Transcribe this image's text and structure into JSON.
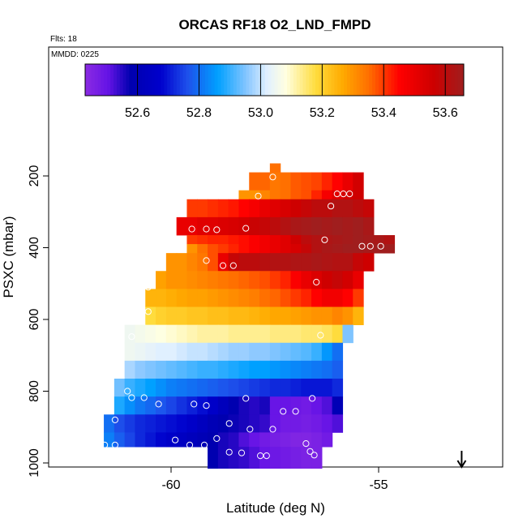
{
  "chart_data": {
    "type": "heatmap",
    "title": "ORCAS RF18 O2_LND_FMPD",
    "flights_label": "Flts: 18",
    "date_label": "MMDD: 0225",
    "xlabel": "Latitude (deg N)",
    "ylabel": "PSXC (mbar)",
    "xlim": [
      -63,
      -52
    ],
    "ylim": [
      1010,
      90
    ],
    "x_ticks": [
      -60,
      -55
    ],
    "x_tick_labels": [
      "-60",
      "-55"
    ],
    "y_ticks": [
      200,
      400,
      600,
      800,
      1000
    ],
    "y_tick_labels": [
      "200",
      "400",
      "600",
      "800",
      "1000"
    ],
    "colorbar": {
      "min": 52.43,
      "max": 53.66,
      "ticks": [
        52.6,
        52.8,
        53.0,
        53.2,
        53.4,
        53.6
      ],
      "tick_labels": [
        "52.6",
        "52.8",
        "53.0",
        "53.2",
        "53.4",
        "53.6"
      ]
    },
    "cell_width_deg": 0.25,
    "layer_thickness_mbar": 25,
    "rows": [
      {
        "p_top": 165,
        "p_bot": 190,
        "lat_start": -57.62,
        "lat_end": -57.37,
        "values": [
          53.35
        ]
      },
      {
        "p_top": 190,
        "p_bot": 240,
        "lat_start": -58.12,
        "lat_end": -55.37,
        "values": [
          53.36,
          53.36,
          53.34,
          53.35,
          53.37,
          53.38,
          53.39,
          53.42,
          53.45,
          53.5,
          53.55
        ]
      },
      {
        "p_top": 240,
        "p_bot": 265,
        "lat_start": -58.37,
        "lat_end": -55.37,
        "values": [
          53.3,
          53.3,
          53.32,
          53.34,
          53.35,
          53.37,
          53.38,
          53.42,
          53.47,
          53.52,
          53.55,
          53.56
        ]
      },
      {
        "p_top": 265,
        "p_bot": 315,
        "lat_start": -59.62,
        "lat_end": -55.12,
        "values": [
          53.4,
          53.4,
          53.41,
          53.42,
          53.43,
          53.45,
          53.47,
          53.5,
          53.52,
          53.54,
          53.56,
          53.58,
          53.6,
          53.6,
          53.62,
          53.62,
          53.6,
          53.58
        ]
      },
      {
        "p_top": 315,
        "p_bot": 365,
        "lat_start": -59.87,
        "lat_end": -55.12,
        "values": [
          53.5,
          53.5,
          53.52,
          53.52,
          53.53,
          53.54,
          53.55,
          53.57,
          53.58,
          53.6,
          53.62,
          53.64,
          53.65,
          53.66,
          53.65,
          53.66,
          53.65,
          53.66,
          53.64
        ]
      },
      {
        "p_top": 365,
        "p_bot": 390,
        "lat_start": -59.62,
        "lat_end": -54.62,
        "values": [
          53.4,
          53.41,
          53.42,
          53.42,
          53.43,
          53.44,
          53.46,
          53.48,
          53.5,
          53.52,
          53.56,
          53.6,
          53.62,
          53.63,
          53.64,
          53.65,
          53.66,
          53.65,
          53.64,
          53.62
        ]
      },
      {
        "p_top": 390,
        "p_bot": 415,
        "lat_start": -59.62,
        "lat_end": -54.62,
        "values": [
          53.3,
          53.35,
          53.38,
          53.4,
          53.42,
          53.44,
          53.46,
          53.48,
          53.5,
          53.52,
          53.54,
          53.58,
          53.62,
          53.64,
          53.65,
          53.66,
          53.66,
          53.65,
          53.66,
          53.66
        ]
      },
      {
        "p_top": 415,
        "p_bot": 465,
        "lat_start": -60.12,
        "lat_end": -55.12,
        "values": [
          53.3,
          53.3,
          53.32,
          53.34,
          53.38,
          53.5,
          53.58,
          53.6,
          53.6,
          53.61,
          53.62,
          53.62,
          53.63,
          53.63,
          53.64,
          53.63,
          53.62,
          53.62,
          53.58,
          53.56
        ]
      },
      {
        "p_top": 465,
        "p_bot": 515,
        "lat_start": -60.37,
        "lat_end": -55.37,
        "values": [
          53.28,
          53.3,
          53.3,
          53.31,
          53.32,
          53.33,
          53.34,
          53.35,
          53.36,
          53.37,
          53.38,
          53.4,
          53.42,
          53.46,
          53.5,
          53.53,
          53.56,
          53.58,
          53.55,
          53.5
        ]
      },
      {
        "p_top": 515,
        "p_bot": 565,
        "lat_start": -60.62,
        "lat_end": -55.37,
        "values": [
          53.25,
          53.25,
          53.26,
          53.27,
          53.28,
          53.28,
          53.29,
          53.3,
          53.31,
          53.32,
          53.33,
          53.35,
          53.36,
          53.38,
          53.4,
          53.42,
          53.45,
          53.48,
          53.48,
          53.45,
          53.4
        ]
      },
      {
        "p_top": 565,
        "p_bot": 615,
        "lat_start": -60.62,
        "lat_end": -55.37,
        "values": [
          53.18,
          53.2,
          53.21,
          53.21,
          53.22,
          53.22,
          53.23,
          53.23,
          53.24,
          53.24,
          53.25,
          53.26,
          53.27,
          53.27,
          53.28,
          53.29,
          53.3,
          53.3,
          53.32,
          53.3,
          53.25
        ]
      },
      {
        "p_top": 615,
        "p_bot": 665,
        "lat_start": -61.12,
        "lat_end": -55.62,
        "values": [
          53.05,
          53.06,
          53.07,
          53.08,
          53.09,
          53.1,
          53.11,
          53.12,
          53.12,
          53.12,
          53.13,
          53.13,
          53.13,
          53.13,
          53.14,
          53.14,
          53.14,
          53.15,
          53.15,
          53.16,
          53.18,
          52.95
        ]
      },
      {
        "p_top": 665,
        "p_bot": 715,
        "lat_start": -61.12,
        "lat_end": -55.87,
        "values": [
          53.05,
          53.04,
          53.03,
          53.02,
          53.02,
          53.01,
          53.0,
          53.0,
          52.99,
          52.98,
          52.97,
          52.97,
          52.96,
          52.96,
          52.95,
          52.94,
          52.93,
          52.92,
          52.9,
          52.85,
          52.8
        ]
      },
      {
        "p_top": 715,
        "p_bot": 765,
        "lat_start": -61.12,
        "lat_end": -55.87,
        "values": [
          52.98,
          52.96,
          52.95,
          52.94,
          52.93,
          52.92,
          52.91,
          52.9,
          52.9,
          52.89,
          52.88,
          52.87,
          52.86,
          52.86,
          52.85,
          52.84,
          52.83,
          52.82,
          52.81,
          52.8,
          52.78
        ]
      },
      {
        "p_top": 765,
        "p_bot": 815,
        "lat_start": -61.37,
        "lat_end": -55.87,
        "values": [
          52.94,
          52.9,
          52.88,
          52.86,
          52.84,
          52.82,
          52.81,
          52.8,
          52.79,
          52.78,
          52.77,
          52.76,
          52.75,
          52.74,
          52.73,
          52.72,
          52.72,
          52.71,
          52.7,
          52.7,
          52.7,
          52.72
        ]
      },
      {
        "p_top": 815,
        "p_bot": 865,
        "lat_start": -61.37,
        "lat_end": -55.87,
        "values": [
          52.88,
          52.84,
          52.81,
          52.79,
          52.77,
          52.75,
          52.73,
          52.71,
          52.69,
          52.66,
          52.62,
          52.58,
          52.56,
          52.55,
          52.56,
          52.5,
          52.5,
          52.49,
          52.48,
          52.5,
          52.52,
          52.6
        ]
      },
      {
        "p_top": 865,
        "p_bot": 915,
        "lat_start": -61.62,
        "lat_end": -55.87,
        "values": [
          52.8,
          52.76,
          52.74,
          52.72,
          52.71,
          52.7,
          52.69,
          52.68,
          52.66,
          52.63,
          52.6,
          52.58,
          52.57,
          52.56,
          52.55,
          52.54,
          52.5,
          52.48,
          52.48,
          52.47,
          52.48,
          52.5,
          52.52
        ]
      },
      {
        "p_top": 915,
        "p_bot": 955,
        "lat_start": -61.62,
        "lat_end": -56.12,
        "values": [
          52.82,
          52.78,
          52.75,
          52.72,
          52.7,
          52.68,
          52.66,
          52.64,
          52.62,
          52.6,
          52.58,
          52.56,
          52.55,
          52.52,
          52.5,
          52.48,
          52.47,
          52.46,
          52.45,
          52.45,
          52.46,
          52.48
        ]
      },
      {
        "p_top": 955,
        "p_bot": 1015,
        "lat_start": -59.12,
        "lat_end": -56.37,
        "values": [
          52.58,
          52.56,
          52.55,
          52.54,
          52.52,
          52.5,
          52.49,
          52.48,
          52.47,
          52.46,
          52.46
        ]
      }
    ],
    "points": [
      [
        -57.55,
        203
      ],
      [
        -57.9,
        256
      ],
      [
        -56.0,
        250
      ],
      [
        -55.85,
        250
      ],
      [
        -55.7,
        250
      ],
      [
        -56.15,
        284
      ],
      [
        -55.0,
        316
      ],
      [
        -59.5,
        348
      ],
      [
        -59.15,
        348
      ],
      [
        -58.9,
        350
      ],
      [
        -58.2,
        346
      ],
      [
        -60.0,
        384
      ],
      [
        -56.3,
        378
      ],
      [
        -55.4,
        396
      ],
      [
        -55.2,
        396
      ],
      [
        -54.95,
        396
      ],
      [
        -60.3,
        446
      ],
      [
        -59.15,
        436
      ],
      [
        -58.75,
        450
      ],
      [
        -58.5,
        450
      ],
      [
        -56.5,
        496
      ],
      [
        -60.55,
        510
      ],
      [
        -60.55,
        578
      ],
      [
        -60.95,
        648
      ],
      [
        -56.4,
        644
      ],
      [
        -61.05,
        800
      ],
      [
        -60.95,
        818
      ],
      [
        -60.65,
        818
      ],
      [
        -60.3,
        836
      ],
      [
        -59.45,
        836
      ],
      [
        -59.15,
        840
      ],
      [
        -58.2,
        820
      ],
      [
        -56.6,
        820
      ],
      [
        -57.3,
        856
      ],
      [
        -57.0,
        856
      ],
      [
        -61.35,
        880
      ],
      [
        -58.6,
        890
      ],
      [
        -58.1,
        906
      ],
      [
        -57.55,
        906
      ],
      [
        -59.9,
        936
      ],
      [
        -59.55,
        950
      ],
      [
        -59.2,
        950
      ],
      [
        -58.9,
        932
      ],
      [
        -56.75,
        946
      ],
      [
        -61.85,
        950
      ],
      [
        -61.75,
        950
      ],
      [
        -61.6,
        950
      ],
      [
        -61.35,
        950
      ],
      [
        -56.65,
        968
      ],
      [
        -56.55,
        978
      ],
      [
        -58.6,
        970
      ],
      [
        -58.3,
        972
      ],
      [
        -57.85,
        980
      ],
      [
        -57.7,
        980
      ]
    ],
    "marker_arrow": {
      "lat": -53.0,
      "label": "downward arrow at 1000 mbar"
    }
  }
}
